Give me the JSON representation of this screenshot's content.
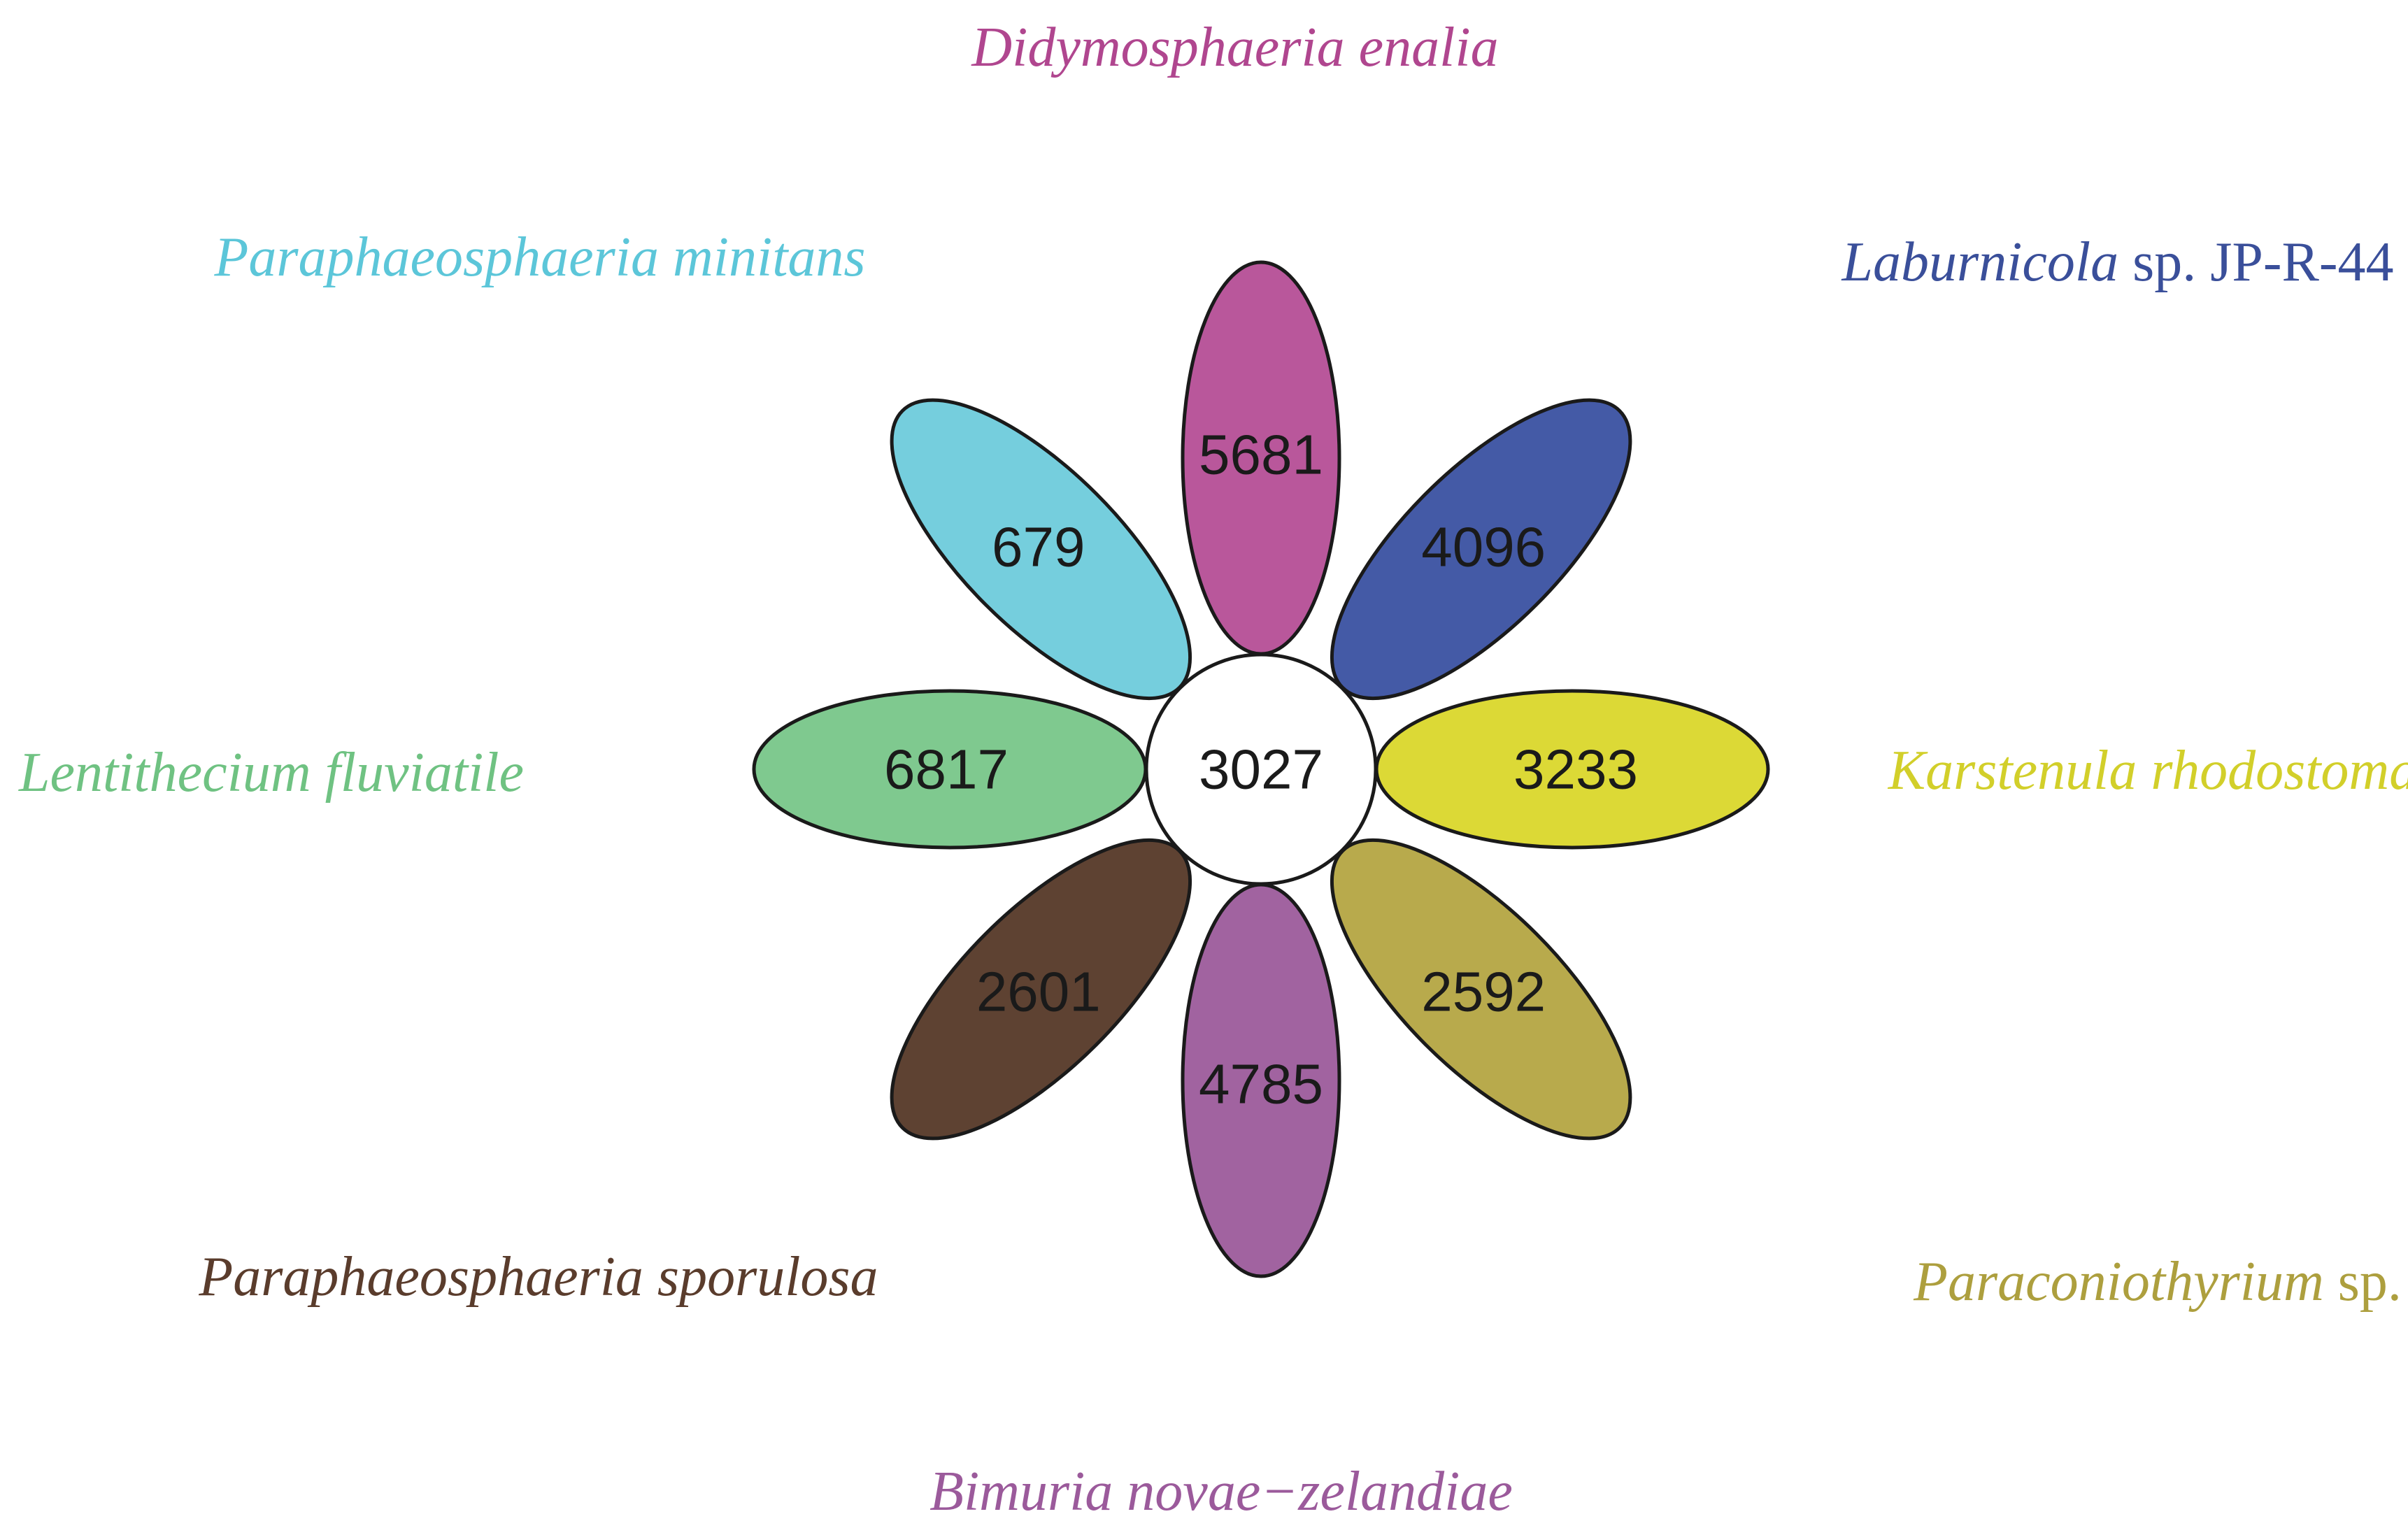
{
  "diagram": {
    "type": "flower-venn",
    "core": {
      "label": "3027",
      "fill": "#ffffff"
    },
    "petals": [
      {
        "id": "didymosphaeria",
        "count": "5681",
        "fill": "#b9579b",
        "label_color": "#b0468f",
        "species_italic": "Didymosphaeria enalia",
        "species_roman": ""
      },
      {
        "id": "laburnicola",
        "count": "4096",
        "fill": "#445aa6",
        "label_color": "#3a4f9a",
        "species_italic": "Laburnicola",
        "species_roman": " sp. JP-R-44"
      },
      {
        "id": "karstenula",
        "count": "3233",
        "fill": "#dcd936",
        "label_color": "#d2cf2a",
        "species_italic": "Karstenula rhodostoma",
        "species_roman": ""
      },
      {
        "id": "paraconiothyrium",
        "count": "2592",
        "fill": "#b8aa4c",
        "label_color": "#ad9f3e",
        "species_italic": "Paraconiothyrium",
        "species_roman": " sp."
      },
      {
        "id": "bimuria",
        "count": "4785",
        "fill": "#a163a0",
        "label_color": "#9b5a9b",
        "species_italic": "Bimuria novae−zelandiae",
        "species_roman": ""
      },
      {
        "id": "paraphaeosphaeria-sporulosa",
        "count": "2601",
        "fill": "#5e4232",
        "label_color": "#5a3c2c",
        "species_italic": "Paraphaeosphaeria sporulosa",
        "species_roman": ""
      },
      {
        "id": "lentithecium",
        "count": "6817",
        "fill": "#7fc98f",
        "label_color": "#6fc282",
        "species_italic": "Lentithecium fluviatile",
        "species_roman": ""
      },
      {
        "id": "paraphaeosphaeria-minitans",
        "count": "679",
        "fill": "#75cedd",
        "label_color": "#5cc6d9",
        "species_italic": "Paraphaeosphaeria minitans",
        "species_roman": ""
      }
    ]
  }
}
